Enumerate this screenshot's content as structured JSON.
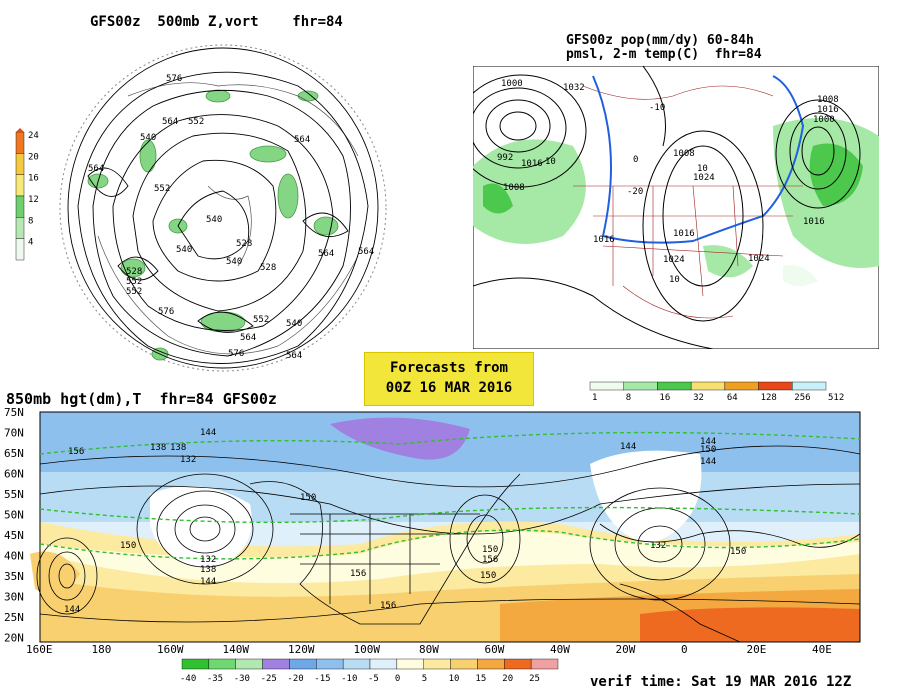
{
  "panels": {
    "upper_left": {
      "title": "GFS00z  500mb Z,vort    fhr=84",
      "colorbar": {
        "levels": [
          "24",
          "20",
          "16",
          "12",
          "8",
          "4"
        ],
        "colors": [
          "#f07820",
          "#f5c840",
          "#f8e878",
          "#6fd06f",
          "#b5e8b5",
          "#eef8ee"
        ]
      },
      "contour_labels": [
        "576",
        "564",
        "552",
        "540",
        "564",
        "564",
        "540",
        "552",
        "564",
        "528",
        "540",
        "540",
        "528",
        "552",
        "528",
        "552",
        "564",
        "576",
        "564",
        "576",
        "564",
        "540",
        "552"
      ]
    },
    "upper_right": {
      "title_line1": "GFS00z pop(mm/dy) 60-84h",
      "title_line2": "pmsl, 2-m temp(C)  fhr=84",
      "colorbar": {
        "levels": [
          "1",
          "8",
          "16",
          "32",
          "64",
          "128",
          "256",
          "512"
        ],
        "colors": [
          "#eefbee",
          "#a6e8a6",
          "#4cc84c",
          "#f8e070",
          "#f0a020",
          "#e84818",
          "#c8f0f8"
        ]
      },
      "contour_labels": [
        "1000",
        "992",
        "1008",
        "1016",
        "1008",
        "1000",
        "1016",
        "1024",
        "1016",
        "1024",
        "1024",
        "1016",
        "1032",
        "1008",
        "1016",
        "10",
        "10",
        "-10",
        "-20",
        "10",
        "0"
      ]
    },
    "lower": {
      "title": "850mb hgt(dm),T  fhr=84 GFS00z",
      "lat_labels": [
        "75N",
        "70N",
        "65N",
        "60N",
        "55N",
        "50N",
        "45N",
        "40N",
        "35N",
        "30N",
        "25N",
        "20N"
      ],
      "lon_labels": [
        "160E",
        "180",
        "160W",
        "140W",
        "120W",
        "100W",
        "80W",
        "60W",
        "40W",
        "20W",
        "0",
        "20E",
        "40E"
      ],
      "colorbar": {
        "levels": [
          "-40",
          "-35",
          "-30",
          "-25",
          "-20",
          "-15",
          "-10",
          "-5",
          "0",
          "5",
          "10",
          "15",
          "20",
          "25"
        ],
        "colors": [
          "#30c030",
          "#70d870",
          "#b0e8b0",
          "#a080e0",
          "#6fa8e8",
          "#8ec0ee",
          "#b8dcf4",
          "#e0f0fa",
          "#fffde0",
          "#fbeaa0",
          "#f8d070",
          "#f4a840",
          "#ee6a20",
          "#f0a0a0"
        ]
      },
      "contour_labels": [
        "156",
        "138",
        "144",
        "132",
        "150",
        "150",
        "132",
        "138",
        "144",
        "144",
        "150",
        "156",
        "156",
        "144",
        "150",
        "144",
        "132",
        "150",
        "150",
        "138",
        "144",
        "156"
      ]
    }
  },
  "forecast_box": {
    "line1": "Forecasts from",
    "line2": "00Z 16 MAR 2016"
  },
  "verif_time": "verif time: Sat 19 MAR 2016 12Z"
}
